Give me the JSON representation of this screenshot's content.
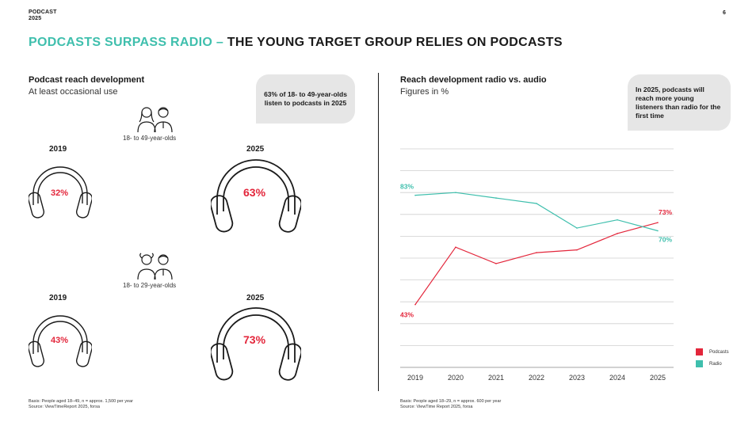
{
  "header": {
    "logo_line1": "PODCAST",
    "logo_line2": "2025",
    "page_number": "6"
  },
  "headline": {
    "accent": "PODCASTS SURPASS RADIO –",
    "rest": " THE YOUNG TARGET GROUP RELIES ON PODCASTS"
  },
  "left": {
    "title": "Podcast reach development",
    "subtitle": "At least occasional use",
    "callout": "63% of 18- to 49-year-olds listen to podcasts in 2025",
    "group1": {
      "label": "18- to 49-year-olds",
      "year_a": "2019",
      "value_a": "32%",
      "year_b": "2025",
      "value_b": "63%"
    },
    "group2": {
      "label": "18- to 29-year-olds",
      "year_a": "2019",
      "value_a": "43%",
      "year_b": "2025",
      "value_b": "73%"
    },
    "basis_line1": "Basis: People aged 18–49, n = approx. 1,500 per year",
    "basis_line2": "Source: ViewTimeReport 2025, forsa"
  },
  "right": {
    "title": "Reach development radio vs. audio",
    "subtitle": "Figures in %",
    "callout": "In 2025, podcasts will reach more young listeners than radio for the first time",
    "basis_line1": "Basis: People aged 18–29, n = approx. 600 per year",
    "basis_line2": "Source: ViewTime Report 2025, forsa"
  },
  "colors": {
    "accent": "#3fbfad",
    "podcasts": "#e3263b",
    "radio": "#3fbfad"
  },
  "chart_data": {
    "type": "line",
    "x": [
      "2019",
      "2020",
      "2021",
      "2022",
      "2023",
      "2024",
      "2025"
    ],
    "series": [
      {
        "name": "Podcasts",
        "color": "#e3263b",
        "values": [
          43,
          64,
          58,
          62,
          63,
          69,
          73
        ],
        "start_label": "43%",
        "end_label": "73%"
      },
      {
        "name": "Radio",
        "color": "#3fbfad",
        "values": [
          83,
          84,
          82,
          80,
          71,
          74,
          70
        ],
        "start_label": "83%",
        "end_label": "70%"
      }
    ],
    "ylim": [
      20,
      100
    ],
    "grid": true,
    "legend": "bottom-right"
  }
}
